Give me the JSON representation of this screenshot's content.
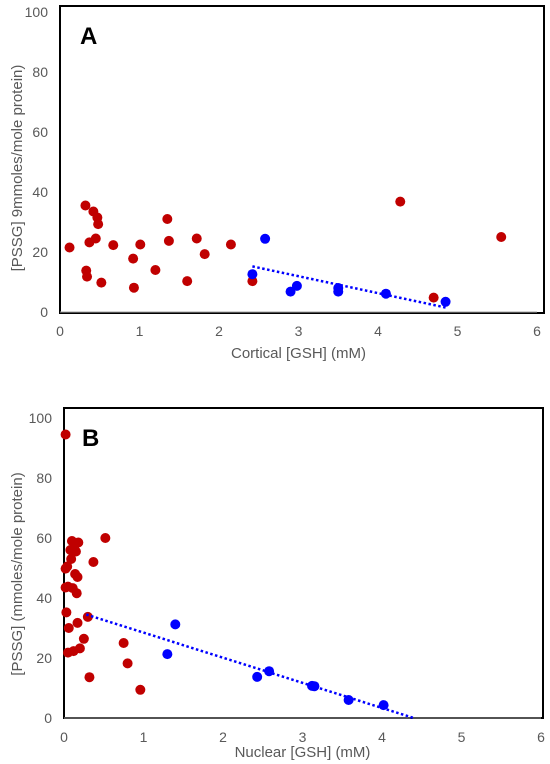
{
  "colors": {
    "red": "#c00000",
    "blue": "#0000ff",
    "frame": "#000000",
    "axis": "#a6a6a6",
    "text": "#595959"
  },
  "chart_data": [
    {
      "type": "scatter",
      "panel_label": "A",
      "xlabel": "Cortical [GSH] (mM)",
      "ylabel": "[PSSG] 9mmoles/mole protein)",
      "xlim": [
        0,
        6
      ],
      "ylim": [
        0,
        100
      ],
      "xticks": [
        "0",
        "1",
        "2",
        "3",
        "4",
        "5",
        "6"
      ],
      "yticks": [
        "0",
        "20",
        "40",
        "60",
        "80",
        "100"
      ],
      "grid": false,
      "series": [
        {
          "color": "red",
          "points": [
            [
              0.12,
              21.5
            ],
            [
              0.32,
              35.5
            ],
            [
              0.33,
              13.8
            ],
            [
              0.34,
              11.8
            ],
            [
              0.37,
              23.2
            ],
            [
              0.42,
              33.5
            ],
            [
              0.45,
              24.5
            ],
            [
              0.47,
              31.5
            ],
            [
              0.48,
              29.3
            ],
            [
              0.52,
              9.8
            ],
            [
              0.67,
              22.3
            ],
            [
              0.92,
              17.8
            ],
            [
              0.93,
              8.1
            ],
            [
              1.01,
              22.5
            ],
            [
              1.2,
              14.0
            ],
            [
              1.35,
              31.0
            ],
            [
              1.37,
              23.7
            ],
            [
              1.6,
              10.3
            ],
            [
              1.72,
              24.5
            ],
            [
              1.82,
              19.3
            ],
            [
              2.15,
              22.5
            ],
            [
              2.42,
              10.3
            ],
            [
              4.28,
              36.8
            ],
            [
              4.7,
              4.8
            ],
            [
              5.55,
              25.0
            ]
          ]
        },
        {
          "color": "blue",
          "points": [
            [
              2.42,
              12.6
            ],
            [
              2.58,
              24.4
            ],
            [
              2.9,
              6.8
            ],
            [
              2.98,
              8.7
            ],
            [
              3.5,
              8.0
            ],
            [
              3.5,
              6.8
            ],
            [
              4.1,
              6.1
            ],
            [
              4.85,
              3.4
            ]
          ],
          "trendline": [
            [
              2.42,
              15.2
            ],
            [
              4.85,
              1.5
            ]
          ]
        }
      ]
    },
    {
      "type": "scatter",
      "panel_label": "B",
      "xlabel": "Nuclear [GSH] (mM)",
      "ylabel": "[PSSG] (mmoles/mole protein)",
      "xlim": [
        0,
        6
      ],
      "ylim": [
        0,
        100
      ],
      "xticks": [
        "0",
        "1",
        "2",
        "3",
        "4",
        "5",
        "6"
      ],
      "yticks": [
        "0",
        "20",
        "40",
        "60",
        "80",
        "100"
      ],
      "grid": false,
      "series": [
        {
          "color": "red",
          "points": [
            [
              0.02,
              94.5
            ],
            [
              0.02,
              49.8
            ],
            [
              0.02,
              43.5
            ],
            [
              0.03,
              35.2
            ],
            [
              0.04,
              50.5
            ],
            [
              0.05,
              43.8
            ],
            [
              0.06,
              30.0
            ],
            [
              0.05,
              21.8
            ],
            [
              0.08,
              56.0
            ],
            [
              0.09,
              53.0
            ],
            [
              0.1,
              59.0
            ],
            [
              0.11,
              43.3
            ],
            [
              0.12,
              22.3
            ],
            [
              0.13,
              57.2
            ],
            [
              0.14,
              48.0
            ],
            [
              0.15,
              55.5
            ],
            [
              0.16,
              41.6
            ],
            [
              0.17,
              31.7
            ],
            [
              0.17,
              47.0
            ],
            [
              0.18,
              58.5
            ],
            [
              0.2,
              23.2
            ],
            [
              0.25,
              26.4
            ],
            [
              0.3,
              33.7
            ],
            [
              0.32,
              13.6
            ],
            [
              0.37,
              52.0
            ],
            [
              0.52,
              60.0
            ],
            [
              0.75,
              25.0
            ],
            [
              0.8,
              18.2
            ],
            [
              0.96,
              9.4
            ]
          ]
        },
        {
          "color": "blue",
          "points": [
            [
              1.3,
              21.3
            ],
            [
              1.4,
              31.2
            ],
            [
              2.43,
              13.7
            ],
            [
              2.58,
              15.6
            ],
            [
              3.12,
              10.7
            ],
            [
              3.15,
              10.6
            ],
            [
              3.58,
              6.0
            ],
            [
              4.02,
              4.3
            ]
          ],
          "trendline": [
            [
              0.28,
              34.5
            ],
            [
              4.4,
              0
            ]
          ]
        }
      ]
    }
  ]
}
